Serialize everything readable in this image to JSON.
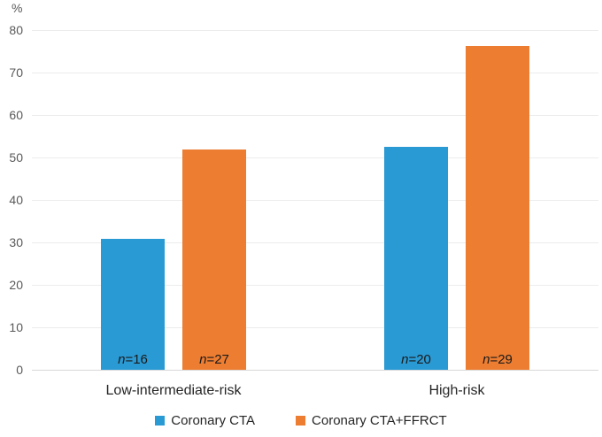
{
  "chart_data": {
    "type": "bar",
    "title": "",
    "categories": [
      "Low-intermediate-risk",
      "High-risk"
    ],
    "series": [
      {
        "name": "Coronary CTA",
        "color": "#2a9ad4",
        "values": [
          30.8,
          52.6
        ],
        "bar_labels": [
          "n=16",
          "n=20"
        ]
      },
      {
        "name": "Coronary CTA+FFRCT",
        "color": "#ed7d31",
        "values": [
          51.9,
          76.3
        ],
        "bar_labels": [
          "n=27",
          "n=29"
        ]
      }
    ],
    "y_axis": {
      "title": "%",
      "min": 0,
      "max": 80,
      "tick_step": 10,
      "tick_labels": [
        "0",
        "10",
        "20",
        "30",
        "40",
        "50",
        "60",
        "70",
        "80"
      ]
    },
    "xlabel": "",
    "ylabel": "%",
    "ylim": [
      0,
      80
    ],
    "grid": true,
    "legend_position": "bottom",
    "colors": {
      "gridline": "#ececec",
      "axis_line": "#d8d8d8",
      "tick_text": "#595959",
      "label_text": "#262626"
    }
  }
}
